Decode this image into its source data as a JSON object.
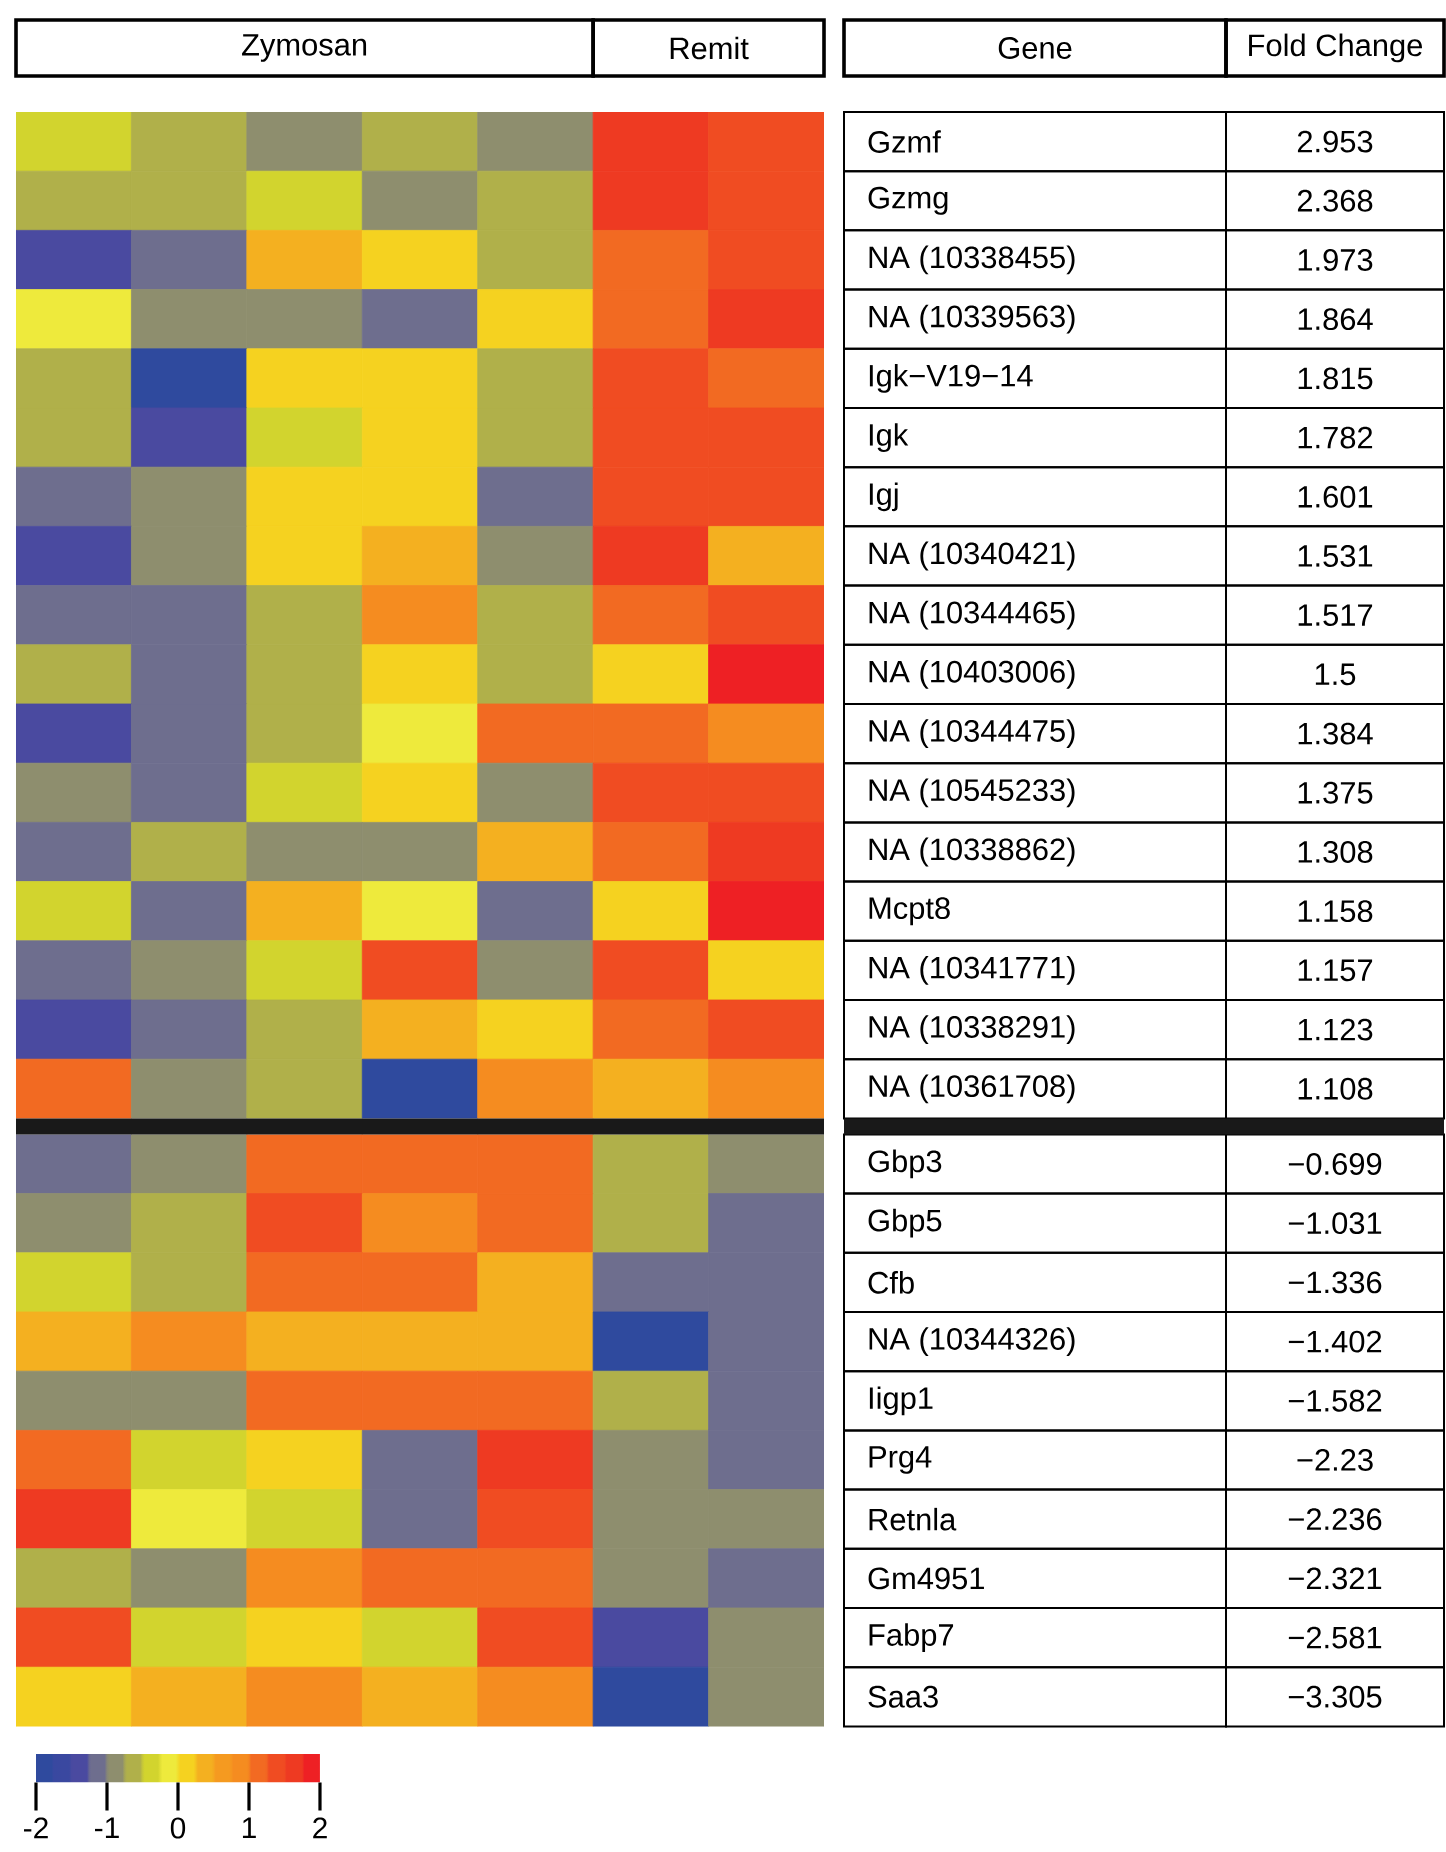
{
  "chart_data": [
    {
      "type": "heatmap",
      "annotations": [
        "Zymosan",
        "Remit"
      ],
      "categories": [
        null,
        null,
        null,
        null,
        null,
        null,
        null
      ],
      "y_categories": [
        null,
        null,
        null,
        null,
        null,
        null,
        null,
        null,
        null,
        null,
        null,
        null,
        null,
        null,
        null,
        null,
        null,
        null,
        null,
        null,
        null,
        null,
        null,
        null,
        null,
        null,
        null
      ],
      "clim": [
        -2,
        2
      ],
      "cticks": [
        -2,
        -1,
        0,
        1,
        2
      ],
      "cells": [
        [
          -0.4,
          -0.6,
          -0.9,
          -0.6,
          -0.9,
          1.6,
          1.4
        ],
        [
          -0.6,
          -0.6,
          -0.4,
          -0.9,
          -0.6,
          1.6,
          1.4
        ],
        [
          -1.4,
          -1.1,
          0.4,
          0.1,
          -0.6,
          1.1,
          1.4
        ],
        [
          -0.1,
          -0.9,
          -0.9,
          -1.1,
          0.1,
          1.1,
          1.6
        ],
        [
          -0.6,
          -1.9,
          0.1,
          0.1,
          -0.6,
          1.4,
          1.1
        ],
        [
          -0.6,
          -1.4,
          -0.4,
          0.1,
          -0.6,
          1.4,
          1.4
        ],
        [
          -1.1,
          -0.9,
          0.1,
          0.1,
          -1.1,
          1.4,
          1.4
        ],
        [
          -1.4,
          -0.9,
          0.1,
          0.4,
          -0.9,
          1.6,
          0.4
        ],
        [
          -1.1,
          -1.1,
          -0.6,
          0.9,
          -0.6,
          1.1,
          1.4
        ],
        [
          -0.6,
          -1.1,
          -0.6,
          0.1,
          -0.6,
          0.1,
          1.9
        ],
        [
          -1.4,
          -1.1,
          -0.6,
          -0.1,
          1.1,
          1.1,
          0.9
        ],
        [
          -0.9,
          -1.1,
          -0.4,
          0.1,
          -0.9,
          1.4,
          1.4
        ],
        [
          -1.1,
          -0.6,
          -0.9,
          -0.9,
          0.4,
          1.1,
          1.6
        ],
        [
          -0.4,
          -1.1,
          0.4,
          -0.1,
          -1.1,
          0.1,
          1.9
        ],
        [
          -1.1,
          -0.9,
          -0.4,
          1.4,
          -0.9,
          1.4,
          0.1
        ],
        [
          -1.4,
          -1.1,
          -0.6,
          0.4,
          0.1,
          1.1,
          1.4
        ],
        [
          1.1,
          -0.9,
          -0.6,
          -1.9,
          0.9,
          0.4,
          0.9
        ],
        [
          -1.1,
          -0.9,
          1.1,
          1.1,
          1.1,
          -0.6,
          -0.9
        ],
        [
          -0.9,
          -0.6,
          1.4,
          0.9,
          1.1,
          -0.6,
          -1.1
        ],
        [
          -0.4,
          -0.6,
          1.1,
          1.1,
          0.4,
          -1.1,
          -1.1
        ],
        [
          0.4,
          0.9,
          0.4,
          0.4,
          0.4,
          -1.9,
          -1.1
        ],
        [
          -0.9,
          -0.9,
          1.1,
          1.1,
          1.1,
          -0.6,
          -1.1
        ],
        [
          1.1,
          -0.4,
          0.1,
          -1.1,
          1.6,
          -0.9,
          -1.1
        ],
        [
          1.6,
          -0.1,
          -0.4,
          -1.1,
          1.4,
          -0.9,
          -0.9
        ],
        [
          -0.6,
          -0.9,
          0.9,
          1.1,
          1.1,
          -0.9,
          -1.1
        ],
        [
          1.4,
          -0.4,
          0.1,
          -0.4,
          1.4,
          -1.4,
          -0.9
        ],
        [
          0.1,
          0.4,
          0.9,
          0.4,
          0.9,
          -1.9,
          -0.9
        ]
      ]
    },
    {
      "type": "other",
      "annotations": [
        "Gene",
        "Fold Change"
      ],
      "categories": [
        "Gzmf",
        "Gzmg",
        "NA (10338455)",
        "NA (10339563)",
        "Igk−V19−14",
        "Igk",
        "Igj",
        "NA (10340421)",
        "NA (10344465)",
        "NA (10403006)",
        "NA (10344475)",
        "NA (10545233)",
        "NA (10338862)",
        "Mcpt8",
        "NA (10341771)",
        "NA (10338291)",
        "NA (10361708)",
        "Gbp3",
        "Gbp5",
        "Cfb",
        "NA (10344326)",
        "Iigp1",
        "Prg4",
        "Retnla",
        "Gm4951",
        "Fabp7",
        "Saa3"
      ],
      "value_labels": [
        "2.953",
        "2.368",
        "1.973",
        "1.864",
        "1.815",
        "1.782",
        "1.601",
        "1.531",
        "1.517",
        "1.5",
        "1.384",
        "1.375",
        "1.308",
        "1.158",
        "1.157",
        "1.123",
        "1.108",
        "−0.699",
        "−1.031",
        "−1.336",
        "−1.402",
        "−1.582",
        "−2.23",
        "−2.236",
        "−2.321",
        "−2.581",
        "−3.305"
      ]
    }
  ]
}
